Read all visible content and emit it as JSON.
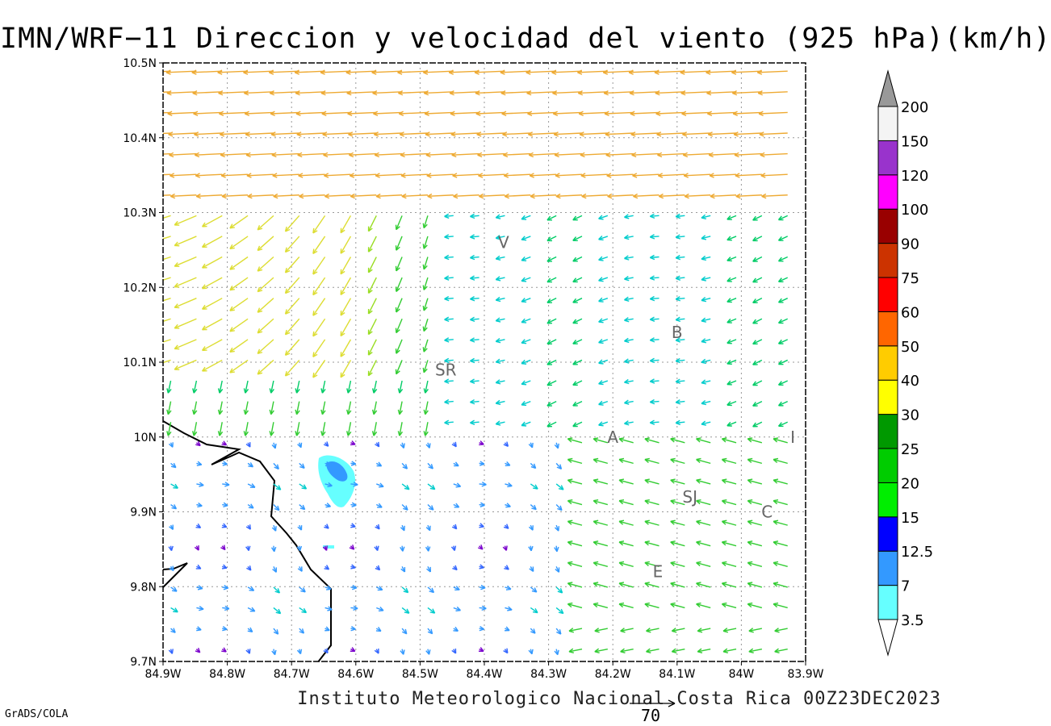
{
  "title": "IMN/WRF−11 Direccion y velocidad del viento (925 hPa)(km/h)",
  "credit": "Instituto Meteorologico Nacional Costa Rica 00Z23DEC2023",
  "software": "GrADS/COLA",
  "reference_vector_label": "70",
  "axes": {
    "lon_ticks": [
      "84.9W",
      "84.8W",
      "84.7W",
      "84.6W",
      "84.5W",
      "84.4W",
      "84.3W",
      "84.2W",
      "84.1W",
      "84W",
      "83.9W"
    ],
    "lat_ticks": [
      "10.5N",
      "10.4N",
      "10.3N",
      "10.2N",
      "10.1N",
      "10N",
      "9.9N",
      "9.8N",
      "9.7N"
    ],
    "lon_range": [
      -84.9,
      -83.9
    ],
    "lat_range": [
      9.7,
      10.5
    ],
    "grid": true
  },
  "places": [
    {
      "label": "V",
      "lon": -84.37,
      "lat": 10.26
    },
    {
      "label": "B",
      "lon": -84.1,
      "lat": 10.14
    },
    {
      "label": "SR",
      "lon": -84.46,
      "lat": 10.09
    },
    {
      "label": "A",
      "lon": -84.2,
      "lat": 10.0
    },
    {
      "label": "I",
      "lon": -83.92,
      "lat": 10.0
    },
    {
      "label": "SJ",
      "lon": -84.08,
      "lat": 9.92
    },
    {
      "label": "C",
      "lon": -83.96,
      "lat": 9.9
    },
    {
      "label": "E",
      "lon": -84.13,
      "lat": 9.82
    }
  ],
  "colorbar": {
    "labels": [
      "3.5",
      "7",
      "12.5",
      "15",
      "20",
      "25",
      "30",
      "40",
      "50",
      "60",
      "75",
      "90",
      "100",
      "120",
      "150",
      "200"
    ],
    "colors": [
      "#66ffff",
      "#3399ff",
      "#0000ff",
      "#00ee00",
      "#00cc00",
      "#009900",
      "#ffff00",
      "#ffcc00",
      "#ff6600",
      "#ff0000",
      "#cc3300",
      "#990000",
      "#ff00ff",
      "#9933cc",
      "#f4f4f4",
      "#999999"
    ]
  }
}
